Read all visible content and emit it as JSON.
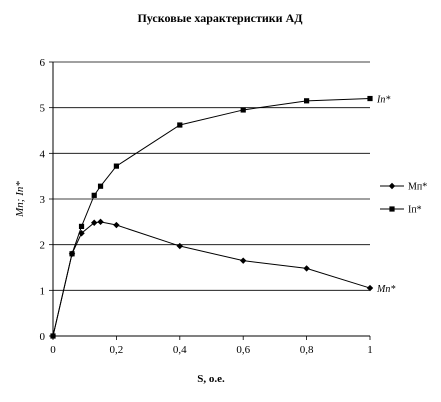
{
  "chart_data": {
    "type": "line",
    "title": "Пусковые характеристики АД",
    "xlabel": "S, о.е.",
    "ylabel": "Mп; Iп*",
    "xlim": [
      0,
      1
    ],
    "ylim": [
      0,
      6
    ],
    "x_ticks": [
      "0",
      "0,2",
      "0,4",
      "0,6",
      "0,8",
      "1"
    ],
    "y_ticks": [
      "0",
      "1",
      "2",
      "3",
      "4",
      "5",
      "6"
    ],
    "grid": true,
    "legend": "right",
    "series": [
      {
        "name": "Мп*",
        "marker": "diamond",
        "color": "#000000",
        "annotation": "Mп*",
        "points": [
          [
            0,
            0
          ],
          [
            0.06,
            1.8
          ],
          [
            0.09,
            2.25
          ],
          [
            0.13,
            2.48
          ],
          [
            0.15,
            2.5
          ],
          [
            0.2,
            2.43
          ],
          [
            0.4,
            1.97
          ],
          [
            0.6,
            1.65
          ],
          [
            0.8,
            1.48
          ],
          [
            1,
            1.05
          ]
        ]
      },
      {
        "name": "Iп*",
        "marker": "square",
        "color": "#000000",
        "annotation": "Iп*",
        "points": [
          [
            0,
            0
          ],
          [
            0.06,
            1.8
          ],
          [
            0.09,
            2.4
          ],
          [
            0.13,
            3.08
          ],
          [
            0.15,
            3.28
          ],
          [
            0.2,
            3.72
          ],
          [
            0.4,
            4.62
          ],
          [
            0.6,
            4.95
          ],
          [
            0.8,
            5.15
          ],
          [
            1,
            5.2
          ]
        ]
      }
    ]
  }
}
